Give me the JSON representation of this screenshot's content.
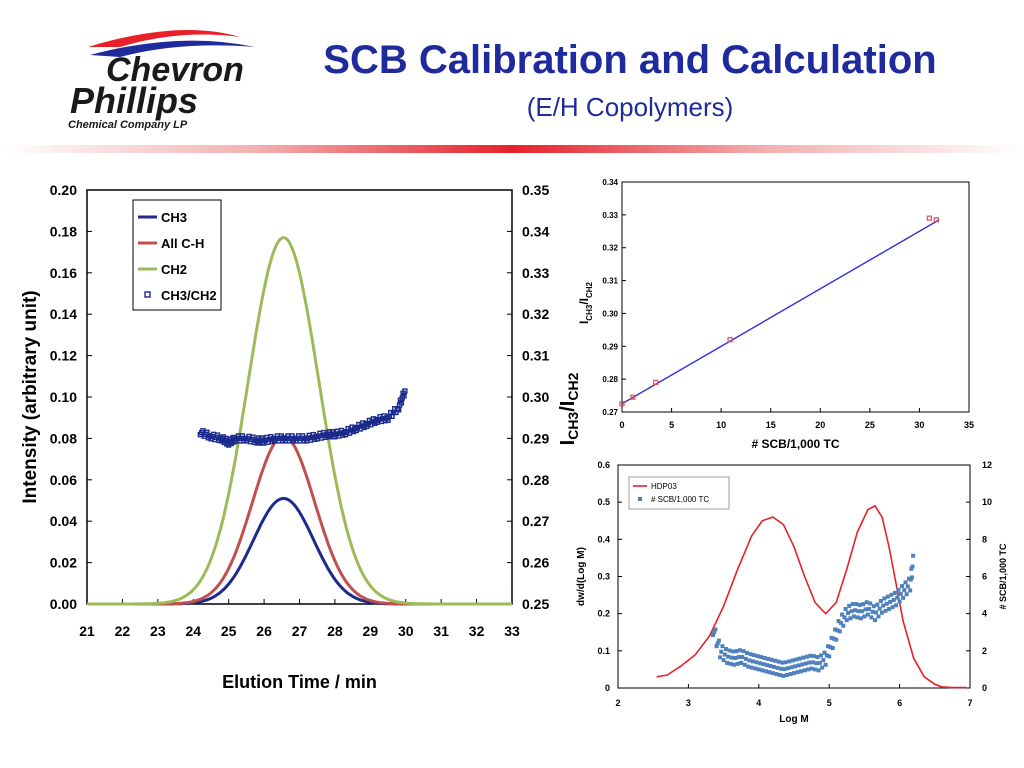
{
  "header": {
    "title": "SCB Calibration and Calculation",
    "subtitle": "(E/H Copolymers)",
    "logo": {
      "line1": "Chevron",
      "line2": "Phillips",
      "line3": "Chemical Company LP"
    }
  },
  "colors": {
    "title": "#1f2a9c",
    "ch3": "#1b2a8c",
    "allch": "#c0504d",
    "ch2": "#9bbb59",
    "ratio": "#1b2a8c",
    "hdp03": "#e8202a",
    "scb": "#4f81bd",
    "calib_line": "#3030e0",
    "calib_pts": "#e05050"
  },
  "chart_data": [
    {
      "type": "line",
      "xlabel": "Elution Time / min",
      "ylabel": "Intensity (arbitrary unit)",
      "y2label": "ICH3/ICH2",
      "y2label_parts": {
        "main1": "I",
        "sub1": "CH3",
        "main2": "/I",
        "sub2": "CH2"
      },
      "xlim": [
        21,
        33
      ],
      "ylim": [
        0,
        0.2
      ],
      "y2lim": [
        0.25,
        0.35
      ],
      "x_ticks": [
        "21",
        "22",
        "23",
        "24",
        "25",
        "26",
        "27",
        "28",
        "29",
        "30",
        "31",
        "32",
        "33"
      ],
      "y_ticks": [
        "0.00",
        "0.02",
        "0.04",
        "0.06",
        "0.08",
        "0.10",
        "0.12",
        "0.14",
        "0.16",
        "0.18",
        "0.20"
      ],
      "y2_ticks": [
        "0.25",
        "0.26",
        "0.27",
        "0.28",
        "0.29",
        "0.30",
        "0.31",
        "0.32",
        "0.33",
        "0.34",
        "0.35"
      ],
      "legend_position": "top-left",
      "series": [
        {
          "name": "CH3",
          "style": "line",
          "peak": 0.051,
          "center": 26.55,
          "sigma": 0.85
        },
        {
          "name": "All C-H",
          "style": "line",
          "peak": 0.081,
          "center": 26.55,
          "sigma": 0.88
        },
        {
          "name": "CH2",
          "style": "line",
          "peak": 0.177,
          "center": 26.55,
          "sigma": 1.0
        },
        {
          "name": "CH3/CH2",
          "style": "markers",
          "axis": "y2",
          "x": [
            24.2,
            24.5,
            24.8,
            25.0,
            25.2,
            25.5,
            25.8,
            26.0,
            26.3,
            26.6,
            26.9,
            27.2,
            27.5,
            27.8,
            28.0,
            28.3,
            28.6,
            28.9,
            29.2,
            29.5,
            29.8,
            30.0
          ],
          "y": [
            0.2915,
            0.2905,
            0.29,
            0.289,
            0.29,
            0.29,
            0.2895,
            0.2895,
            0.29,
            0.29,
            0.29,
            0.29,
            0.2905,
            0.291,
            0.291,
            0.2915,
            0.2925,
            0.2935,
            0.2945,
            0.295,
            0.2975,
            0.302
          ]
        }
      ]
    },
    {
      "type": "scatter",
      "xlabel": "# SCB/1,000 TC",
      "ylabel": "ICH3/ICH2",
      "ylabel_parts": {
        "main1": "I",
        "sub1": "CH3",
        "main2": "/I",
        "sub2": "CH2"
      },
      "xlim": [
        0,
        35
      ],
      "ylim": [
        0.27,
        0.34
      ],
      "x_ticks": [
        "0",
        "5",
        "10",
        "15",
        "20",
        "25",
        "30",
        "35"
      ],
      "y_ticks": [
        "0.27",
        "0.28",
        "0.29",
        "0.30",
        "0.31",
        "0.32",
        "0.33",
        "0.34"
      ],
      "points": {
        "x": [
          0,
          1.1,
          3.4,
          10.9,
          31.0,
          31.7
        ],
        "y": [
          0.2725,
          0.2745,
          0.279,
          0.292,
          0.329,
          0.3285
        ]
      },
      "fit_line": {
        "x": [
          0,
          32
        ],
        "y": [
          0.2725,
          0.3285
        ]
      }
    },
    {
      "type": "line",
      "xlabel": "Log M",
      "ylabel": "dw/d(Log M)",
      "y2label": "# SCB/1,000 TC",
      "xlim": [
        2,
        7
      ],
      "ylim": [
        0,
        0.6
      ],
      "y2lim": [
        0,
        12
      ],
      "x_ticks": [
        "2",
        "3",
        "4",
        "5",
        "6",
        "7"
      ],
      "y_ticks": [
        "0",
        "0.1",
        "0.2",
        "0.3",
        "0.4",
        "0.5",
        "0.6"
      ],
      "y2_ticks": [
        "0",
        "2",
        "4",
        "6",
        "8",
        "10",
        "12"
      ],
      "legend_position": "top-left",
      "series": [
        {
          "name": "HDP03",
          "style": "line",
          "x": [
            2.55,
            2.7,
            2.9,
            3.1,
            3.3,
            3.5,
            3.7,
            3.9,
            4.05,
            4.2,
            4.35,
            4.5,
            4.65,
            4.8,
            4.95,
            5.1,
            5.25,
            5.4,
            5.55,
            5.65,
            5.75,
            5.85,
            5.95,
            6.05,
            6.2,
            6.35,
            6.5,
            6.6,
            6.75,
            6.95
          ],
          "y": [
            0.03,
            0.035,
            0.06,
            0.09,
            0.14,
            0.22,
            0.32,
            0.41,
            0.45,
            0.46,
            0.44,
            0.38,
            0.3,
            0.23,
            0.2,
            0.23,
            0.32,
            0.42,
            0.48,
            0.49,
            0.46,
            0.38,
            0.28,
            0.18,
            0.08,
            0.03,
            0.01,
            0.003,
            0.001,
            0.001
          ]
        },
        {
          "name": "# SCB/1,000 TC",
          "style": "markers",
          "axis": "y2",
          "x": [
            3.35,
            3.45,
            3.55,
            3.65,
            3.75,
            3.85,
            3.95,
            4.05,
            4.15,
            4.25,
            4.35,
            4.45,
            4.55,
            4.65,
            4.75,
            4.85,
            4.95,
            5.05,
            5.15,
            5.25,
            5.35,
            5.45,
            5.55,
            5.65,
            5.75,
            5.85,
            5.95,
            6.05,
            6.15,
            6.2
          ],
          "y": [
            3.2,
            2.0,
            1.7,
            1.6,
            1.7,
            1.5,
            1.4,
            1.3,
            1.2,
            1.1,
            1.0,
            1.1,
            1.2,
            1.3,
            1.4,
            1.3,
            1.6,
            2.5,
            3.4,
            4.0,
            4.2,
            4.1,
            4.3,
            4.0,
            4.4,
            4.6,
            4.8,
            5.2,
            5.6,
            7.0
          ]
        }
      ]
    }
  ]
}
